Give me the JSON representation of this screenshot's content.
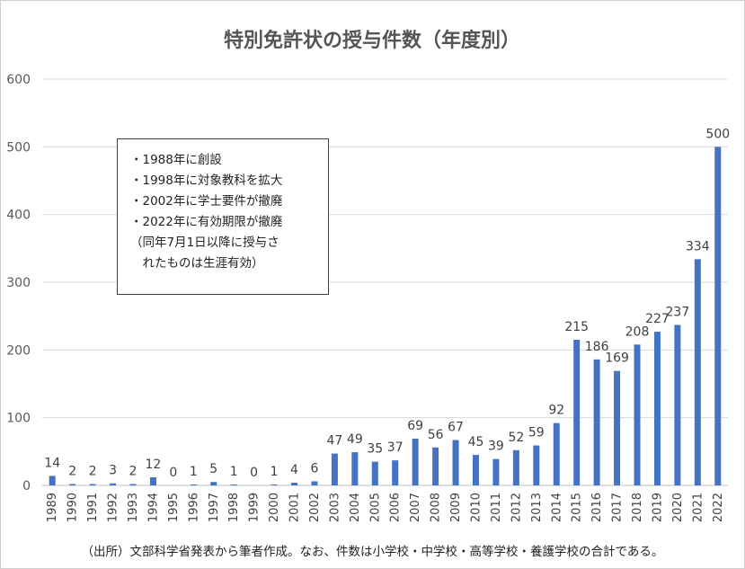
{
  "chart_data": {
    "type": "bar",
    "title": "特別免許状の授与件数（年度別）",
    "categories": [
      "1989",
      "1990",
      "1991",
      "1992",
      "1993",
      "1994",
      "1995",
      "1996",
      "1997",
      "1998",
      "1999",
      "2000",
      "2001",
      "2002",
      "2003",
      "2004",
      "2005",
      "2006",
      "2007",
      "2008",
      "2009",
      "2010",
      "2011",
      "2012",
      "2013",
      "2014",
      "2015",
      "2016",
      "2017",
      "2018",
      "2019",
      "2020",
      "2021",
      "2022"
    ],
    "values": [
      14,
      2,
      2,
      3,
      2,
      12,
      0,
      1,
      5,
      1,
      0,
      1,
      4,
      6,
      47,
      49,
      35,
      37,
      69,
      56,
      67,
      45,
      39,
      52,
      59,
      92,
      215,
      186,
      169,
      208,
      227,
      237,
      334,
      500
    ],
    "ylim": [
      0,
      600
    ],
    "yticks": [
      0,
      100,
      200,
      300,
      400,
      500,
      600
    ],
    "grid": true,
    "bar_color": "#4472c4",
    "xlabel": "",
    "ylabel": ""
  },
  "note": {
    "lines": [
      "・1988年に創設",
      "・1998年に対象教科を拡大",
      "・2002年に学士要件が撤廃",
      "・2022年に有効期限が撤廃",
      "（同年7月1日以降に授与さ",
      "　れたものは生涯有効）"
    ]
  },
  "footer": "（出所）文部科学省発表から筆者作成。なお、件数は小学校・中学校・高等学校・養護学校の合計である。"
}
